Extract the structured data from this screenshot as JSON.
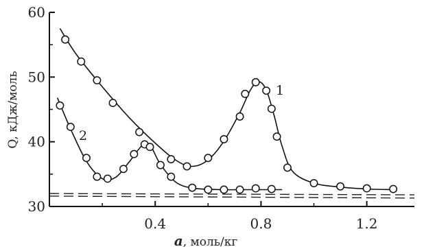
{
  "chart_data": {
    "type": "line",
    "xlabel_var": "a",
    "xlabel_unit": ", моль/кг",
    "ylabel": "Q, кДж/моль",
    "xlim": [
      0,
      1.38
    ],
    "ylim": [
      30,
      60
    ],
    "xticks": [
      0.4,
      0.8,
      1.2
    ],
    "yticks": [
      30,
      40,
      50,
      60
    ],
    "series": [
      {
        "name": "1",
        "x": [
          0.06,
          0.12,
          0.18,
          0.24,
          0.34,
          0.46,
          0.52,
          0.6,
          0.66,
          0.72,
          0.74,
          0.78,
          0.82,
          0.84,
          0.86,
          0.9,
          1.0,
          1.1,
          1.2,
          1.3
        ],
        "y": [
          55.8,
          52.4,
          49.5,
          46.0,
          41.5,
          37.3,
          36.2,
          37.5,
          40.4,
          43.9,
          47.4,
          49.2,
          47.9,
          45.1,
          40.8,
          36.0,
          33.6,
          33.1,
          32.8,
          32.7
        ],
        "curve_x": [
          0.04,
          0.1,
          0.2,
          0.3,
          0.4,
          0.48,
          0.54,
          0.6,
          0.66,
          0.72,
          0.76,
          0.79,
          0.82,
          0.85,
          0.88,
          0.92,
          1.0,
          1.1,
          1.2,
          1.3
        ],
        "curve_y": [
          57.5,
          53.6,
          48.5,
          43.8,
          39.8,
          37.1,
          36.2,
          37.2,
          40.1,
          44.5,
          48.0,
          49.3,
          48.0,
          44.0,
          39.3,
          35.4,
          33.6,
          33.0,
          32.7,
          32.6
        ]
      },
      {
        "name": "2",
        "x": [
          0.04,
          0.08,
          0.14,
          0.18,
          0.22,
          0.28,
          0.32,
          0.36,
          0.38,
          0.42,
          0.46,
          0.54,
          0.6,
          0.66,
          0.72,
          0.78,
          0.84
        ],
        "y": [
          45.6,
          42.3,
          37.5,
          34.6,
          34.3,
          35.8,
          38.1,
          39.6,
          39.2,
          36.4,
          34.6,
          32.9,
          32.6,
          32.6,
          32.6,
          32.8,
          32.7
        ],
        "curve_x": [
          0.03,
          0.08,
          0.14,
          0.2,
          0.25,
          0.3,
          0.35,
          0.38,
          0.42,
          0.48,
          0.55,
          0.65,
          0.75,
          0.88
        ],
        "curve_y": [
          46.8,
          42.0,
          37.0,
          34.3,
          34.5,
          36.8,
          39.4,
          39.5,
          36.5,
          33.7,
          32.8,
          32.6,
          32.6,
          32.6
        ]
      }
    ],
    "baselines": [
      {
        "x": [
          0.0,
          1.38
        ],
        "y": [
          32.0,
          31.8
        ]
      },
      {
        "x": [
          0.0,
          1.38
        ],
        "y": [
          31.6,
          31.3
        ]
      }
    ]
  },
  "labels": {
    "curve1": "1",
    "curve2": "2"
  }
}
